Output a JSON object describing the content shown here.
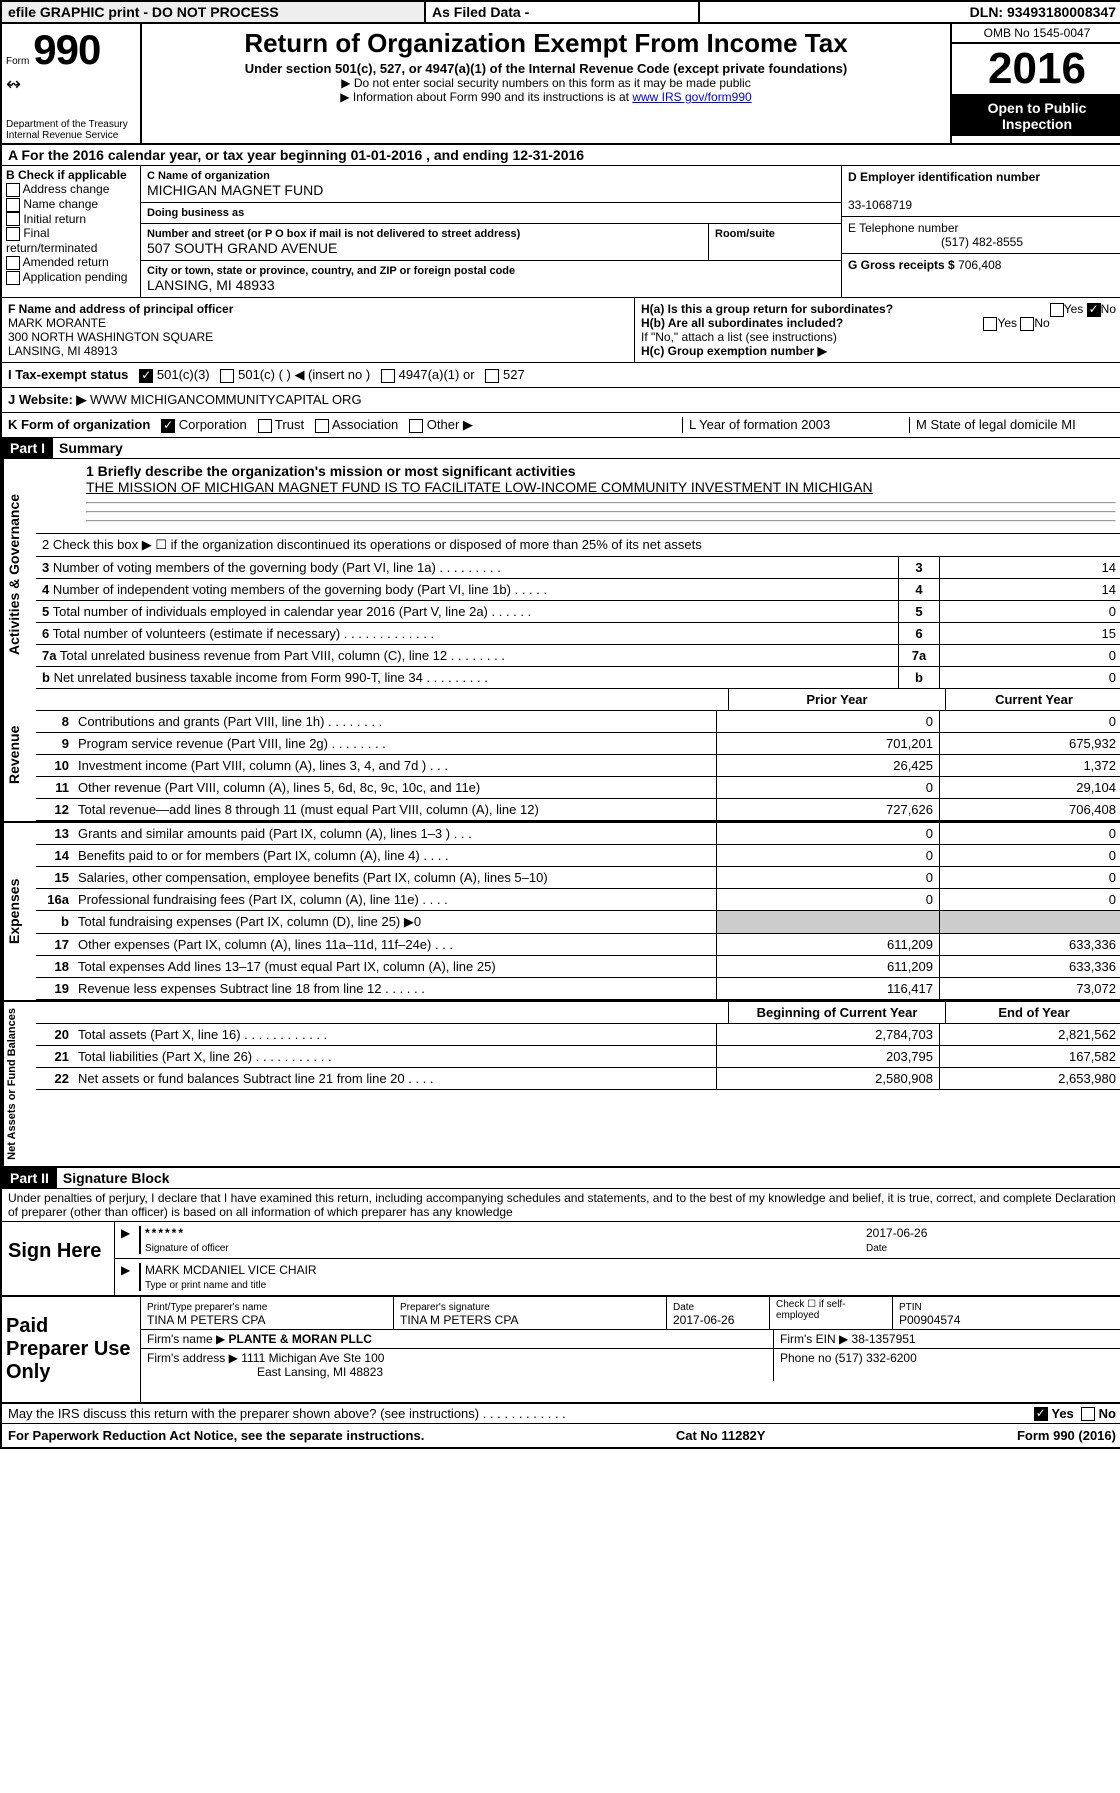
{
  "topbar": {
    "efile": "efile GRAPHIC print - DO NOT PROCESS",
    "asfiled": "As Filed Data -",
    "dln": "DLN: 93493180008347"
  },
  "header": {
    "form_prefix": "Form",
    "form_num": "990",
    "dept": "Department of the Treasury",
    "irs": "Internal Revenue Service",
    "title": "Return of Organization Exempt From Income Tax",
    "sub": "Under section 501(c), 527, or 4947(a)(1) of the Internal Revenue Code (except private foundations)",
    "notice1": "▶ Do not enter social security numbers on this form as it may be made public",
    "notice2_pre": "▶ Information about Form 990 and its instructions is at ",
    "notice2_link": "www IRS gov/form990",
    "omb": "OMB No 1545-0047",
    "year": "2016",
    "public": "Open to Public Inspection"
  },
  "row_a": "A   For the 2016 calendar year, or tax year beginning 01-01-2016   , and ending 12-31-2016",
  "col_b": {
    "title": "B Check if applicable",
    "opts": [
      "Address change",
      "Name change",
      "Initial return",
      "Final return/terminated",
      "Amended return",
      "Application pending"
    ]
  },
  "org": {
    "name_label": "C Name of organization",
    "name": "MICHIGAN MAGNET FUND",
    "dba_label": "Doing business as",
    "dba": "",
    "street_label": "Number and street (or P O  box if mail is not delivered to street address)",
    "room_label": "Room/suite",
    "street": "507 SOUTH GRAND AVENUE",
    "city_label": "City or town, state or province, country, and ZIP or foreign postal code",
    "city": "LANSING, MI  48933"
  },
  "col_d": {
    "ein_label": "D Employer identification number",
    "ein": "33-1068719",
    "tel_label": "E Telephone number",
    "tel": "(517) 482-8555",
    "gross_label": "G Gross receipts $ ",
    "gross": "706,408"
  },
  "principal": {
    "label": "F   Name and address of principal officer",
    "name": "MARK MORANTE",
    "addr1": "300 NORTH WASHINGTON SQUARE",
    "addr2": "LANSING, MI  48913",
    "ha": "H(a)  Is this a group return for subordinates?",
    "ha_yes": "Yes",
    "ha_no": "No",
    "hb": "H(b)  Are all subordinates included?",
    "hb_note": "If \"No,\" attach a list  (see instructions)",
    "hc": "H(c)  Group exemption number ▶"
  },
  "tax_status": {
    "label": "I   Tax-exempt status",
    "o1": "501(c)(3)",
    "o2": "501(c) (   ) ◀ (insert no )",
    "o3": "4947(a)(1) or",
    "o4": "527"
  },
  "website": {
    "label": "J   Website: ▶",
    "val": "  WWW MICHIGANCOMMUNITYCAPITAL ORG"
  },
  "k": {
    "label": "K Form of organization",
    "corp": "Corporation",
    "trust": "Trust",
    "assoc": "Association",
    "other": "Other ▶",
    "L": "L Year of formation  2003",
    "M": "M State of legal domicile   MI"
  },
  "part1": {
    "hdr": " Part I ",
    "title": "Summary",
    "mission_label": "1 Briefly describe the organization's mission or most significant activities",
    "mission": "THE MISSION OF MICHIGAN MAGNET FUND IS TO FACILITATE LOW-INCOME COMMUNITY INVESTMENT IN MICHIGAN",
    "row2": "2   Check this box ▶ ☐  if the organization discontinued its operations or disposed of more than 25% of its net assets",
    "rows_single": [
      {
        "n": "3",
        "desc": "Number of voting members of the governing body (Part VI, line 1a)  .    .    .    .    .    .    .    .    .",
        "val": "14"
      },
      {
        "n": "4",
        "desc": "Number of independent voting members of the governing body (Part VI, line 1b)  .    .    .    .    .",
        "val": "14"
      },
      {
        "n": "5",
        "desc": "Total number of individuals employed in calendar year 2016 (Part V, line 2a)  .    .    .    .    .    .",
        "val": "0"
      },
      {
        "n": "6",
        "desc": "Total number of volunteers (estimate if necessary)  .    .    .    .    .    .    .    .    .    .    .    .    .",
        "val": "15"
      },
      {
        "n": "7a",
        "desc": "Total unrelated business revenue from Part VIII, column (C), line 12  .    .    .    .    .    .    .    .",
        "val": "0"
      },
      {
        "n": "  b",
        "desc": "Net unrelated business taxable income from Form 990-T, line 34  .    .    .    .    .    .    .    .    .",
        "val": "0"
      }
    ],
    "prior": "Prior Year",
    "current": "Current Year",
    "begcur": "Beginning of Current Year",
    "endyr": "End of Year"
  },
  "revenue": [
    {
      "n": "8",
      "desc": "Contributions and grants (Part VIII, line 1h)  .    .    .    .    .    .    .    .",
      "p": "0",
      "c": "0"
    },
    {
      "n": "9",
      "desc": "Program service revenue (Part VIII, line 2g)  .    .    .    .    .    .    .    .",
      "p": "701,201",
      "c": "675,932"
    },
    {
      "n": "10",
      "desc": "Investment income (Part VIII, column (A), lines 3, 4, and 7d )  .    .    .",
      "p": "26,425",
      "c": "1,372"
    },
    {
      "n": "11",
      "desc": "Other revenue (Part VIII, column (A), lines 5, 6d, 8c, 9c, 10c, and 11e)",
      "p": "0",
      "c": "29,104"
    },
    {
      "n": "12",
      "desc": "Total revenue—add lines 8 through 11 (must equal Part VIII, column (A), line 12)",
      "p": "727,626",
      "c": "706,408"
    }
  ],
  "expenses": [
    {
      "n": "13",
      "desc": "Grants and similar amounts paid (Part IX, column (A), lines 1–3 )  .    .    .",
      "p": "0",
      "c": "0"
    },
    {
      "n": "14",
      "desc": "Benefits paid to or for members (Part IX, column (A), line 4)  .    .    .    .",
      "p": "0",
      "c": "0"
    },
    {
      "n": "15",
      "desc": "Salaries, other compensation, employee benefits (Part IX, column (A), lines 5–10)",
      "p": "0",
      "c": "0"
    },
    {
      "n": "16a",
      "desc": "Professional fundraising fees (Part IX, column (A), line 11e)  .    .    .    .",
      "p": "0",
      "c": "0"
    },
    {
      "n": "  b",
      "desc": "Total fundraising expenses (Part IX, column (D), line 25) ▶0",
      "p": "",
      "c": ""
    },
    {
      "n": "17",
      "desc": "Other expenses (Part IX, column (A), lines 11a–11d, 11f–24e)  .    .    .",
      "p": "611,209",
      "c": "633,336"
    },
    {
      "n": "18",
      "desc": "Total expenses  Add lines 13–17 (must equal Part IX, column (A), line 25)",
      "p": "611,209",
      "c": "633,336"
    },
    {
      "n": "19",
      "desc": "Revenue less expenses  Subtract line 18 from line 12  .    .    .    .    .    .",
      "p": "116,417",
      "c": "73,072"
    }
  ],
  "netassets": [
    {
      "n": "20",
      "desc": "Total assets (Part X, line 16)  .    .    .    .    .    .    .    .    .    .    .    .",
      "p": "2,784,703",
      "c": "2,821,562"
    },
    {
      "n": "21",
      "desc": "Total liabilities (Part X, line 26)  .    .    .    .    .    .    .    .    .    .    .",
      "p": "203,795",
      "c": "167,582"
    },
    {
      "n": "22",
      "desc": "Net assets or fund balances  Subtract line 21 from line 20  .    .    .    .",
      "p": "2,580,908",
      "c": "2,653,980"
    }
  ],
  "vert_labels": {
    "ag": "Activities & Governance",
    "rev": "Revenue",
    "exp": "Expenses",
    "net": "Net Assets or Fund Balances"
  },
  "part2": {
    "hdr": " Part II ",
    "title": "Signature Block",
    "perjury": "Under penalties of perjury, I declare that I have examined this return, including accompanying schedules and statements, and to the best of my knowledge and belief, it is true, correct, and complete  Declaration of preparer (other than officer) is based on all information of which preparer has any knowledge"
  },
  "sign": {
    "heading": "Sign Here",
    "stars": "******",
    "sig_label": "Signature of officer",
    "date": "2017-06-26",
    "date_label": "Date",
    "name": "MARK MCDANIEL  VICE CHAIR",
    "name_label": "Type or print name and title"
  },
  "preparer": {
    "heading": "Paid Preparer Use Only",
    "name_label": "Print/Type preparer's name",
    "name": "TINA M PETERS CPA",
    "sig_label": "Preparer's signature",
    "sig": "TINA M PETERS CPA",
    "pdate_label": "Date",
    "pdate": "2017-06-26",
    "check_label": "Check ☐  if self-employed",
    "ptin_label": "PTIN",
    "ptin": "P00904574",
    "firm_label": "Firm's name      ▶",
    "firm": "PLANTE & MORAN PLLC",
    "ein_label": "Firm's EIN ▶",
    "ein": "38-1357951",
    "addr_label": "Firm's address ▶",
    "addr1": "1111 Michigan Ave Ste 100",
    "addr2": "East Lansing, MI  48823",
    "phone_label": "Phone no  ",
    "phone": "(517) 332-6200"
  },
  "may": {
    "text": "May the IRS discuss this return with the preparer shown above? (see instructions)  .    .    .    .    .    .    .    .    .    .    .    .",
    "yes": "Yes",
    "no": "No"
  },
  "footer": {
    "left": "For Paperwork Reduction Act Notice, see the separate instructions.",
    "mid": "Cat  No  11282Y",
    "right": "Form 990 (2016)"
  }
}
